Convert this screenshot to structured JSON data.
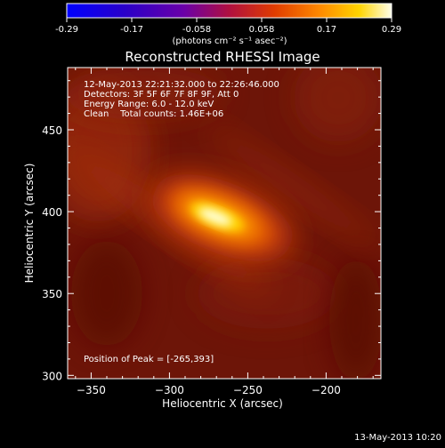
{
  "colorbar": {
    "ticks": [
      "-0.29",
      "-0.17",
      "-0.058",
      "0.058",
      "0.17",
      "0.29"
    ],
    "unit_label": "(photons cm⁻² s⁻¹ asec⁻²)"
  },
  "plot": {
    "title": "Reconstructed RHESSI Image",
    "info_lines": [
      "12-May-2013 22:21:32.000 to 22:26:46.000",
      "Detectors: 3F 5F 6F 7F 8F 9F, Att 0",
      "Energy Range: 6.0 - 12.0 keV",
      "Clean    Total counts: 1.46E+06"
    ],
    "peak_text": "Position of Peak = [-265,393]",
    "timestamp": "13-May-2013 10:20"
  },
  "chart_data": {
    "type": "heatmap",
    "title": "Reconstructed RHESSI Image",
    "xlabel": "Heliocentric X (arcsec)",
    "ylabel": "Heliocentric Y (arcsec)",
    "xlim": [
      -365,
      -165
    ],
    "ylim": [
      298,
      488
    ],
    "x_ticks": [
      -350,
      -300,
      -250,
      -200
    ],
    "y_ticks": [
      300,
      350,
      400,
      450
    ],
    "x_tick_labels": [
      "−350",
      "−300",
      "−250",
      "−200"
    ],
    "y_tick_labels": [
      "300",
      "350",
      "400",
      "450"
    ],
    "colorbar_range": [
      -0.29,
      0.29
    ],
    "peak": [
      -265,
      393
    ],
    "colormap": [
      "#0000ff",
      "#3000c0",
      "#7000a0",
      "#b01030",
      "#e04000",
      "#ff8000",
      "#ffd000",
      "#ffffe0"
    ]
  }
}
